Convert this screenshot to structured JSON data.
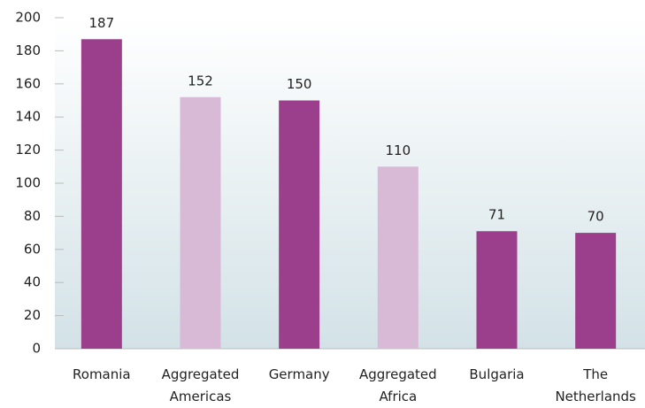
{
  "chart_data": {
    "type": "bar",
    "categories": [
      "Romania",
      "Aggregated Americas",
      "Germany",
      "Aggregated Africa",
      "Bulgaria",
      "The Netherlands"
    ],
    "values": [
      187,
      152,
      150,
      110,
      71,
      70
    ],
    "colors": [
      "#9b3f8c",
      "#d8b9d6",
      "#9b3f8c",
      "#d8b9d6",
      "#9b3f8c",
      "#9b3f8c"
    ],
    "ylim": [
      0,
      200
    ],
    "yticks": [
      0,
      20,
      40,
      60,
      80,
      100,
      120,
      140,
      160,
      180,
      200
    ]
  }
}
